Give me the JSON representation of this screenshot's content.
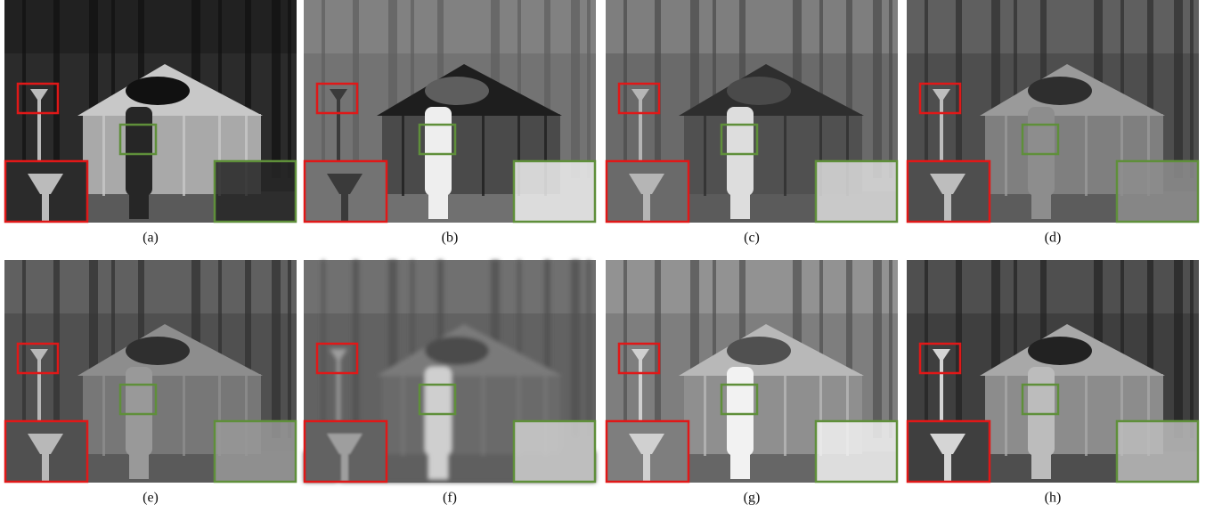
{
  "panels": [
    {
      "caption": "(a)"
    },
    {
      "caption": "(b)"
    },
    {
      "caption": "(c)"
    },
    {
      "caption": "(d)"
    },
    {
      "caption": "(e)"
    },
    {
      "caption": "(f)"
    },
    {
      "caption": "(g)"
    },
    {
      "caption": "(h)"
    }
  ]
}
